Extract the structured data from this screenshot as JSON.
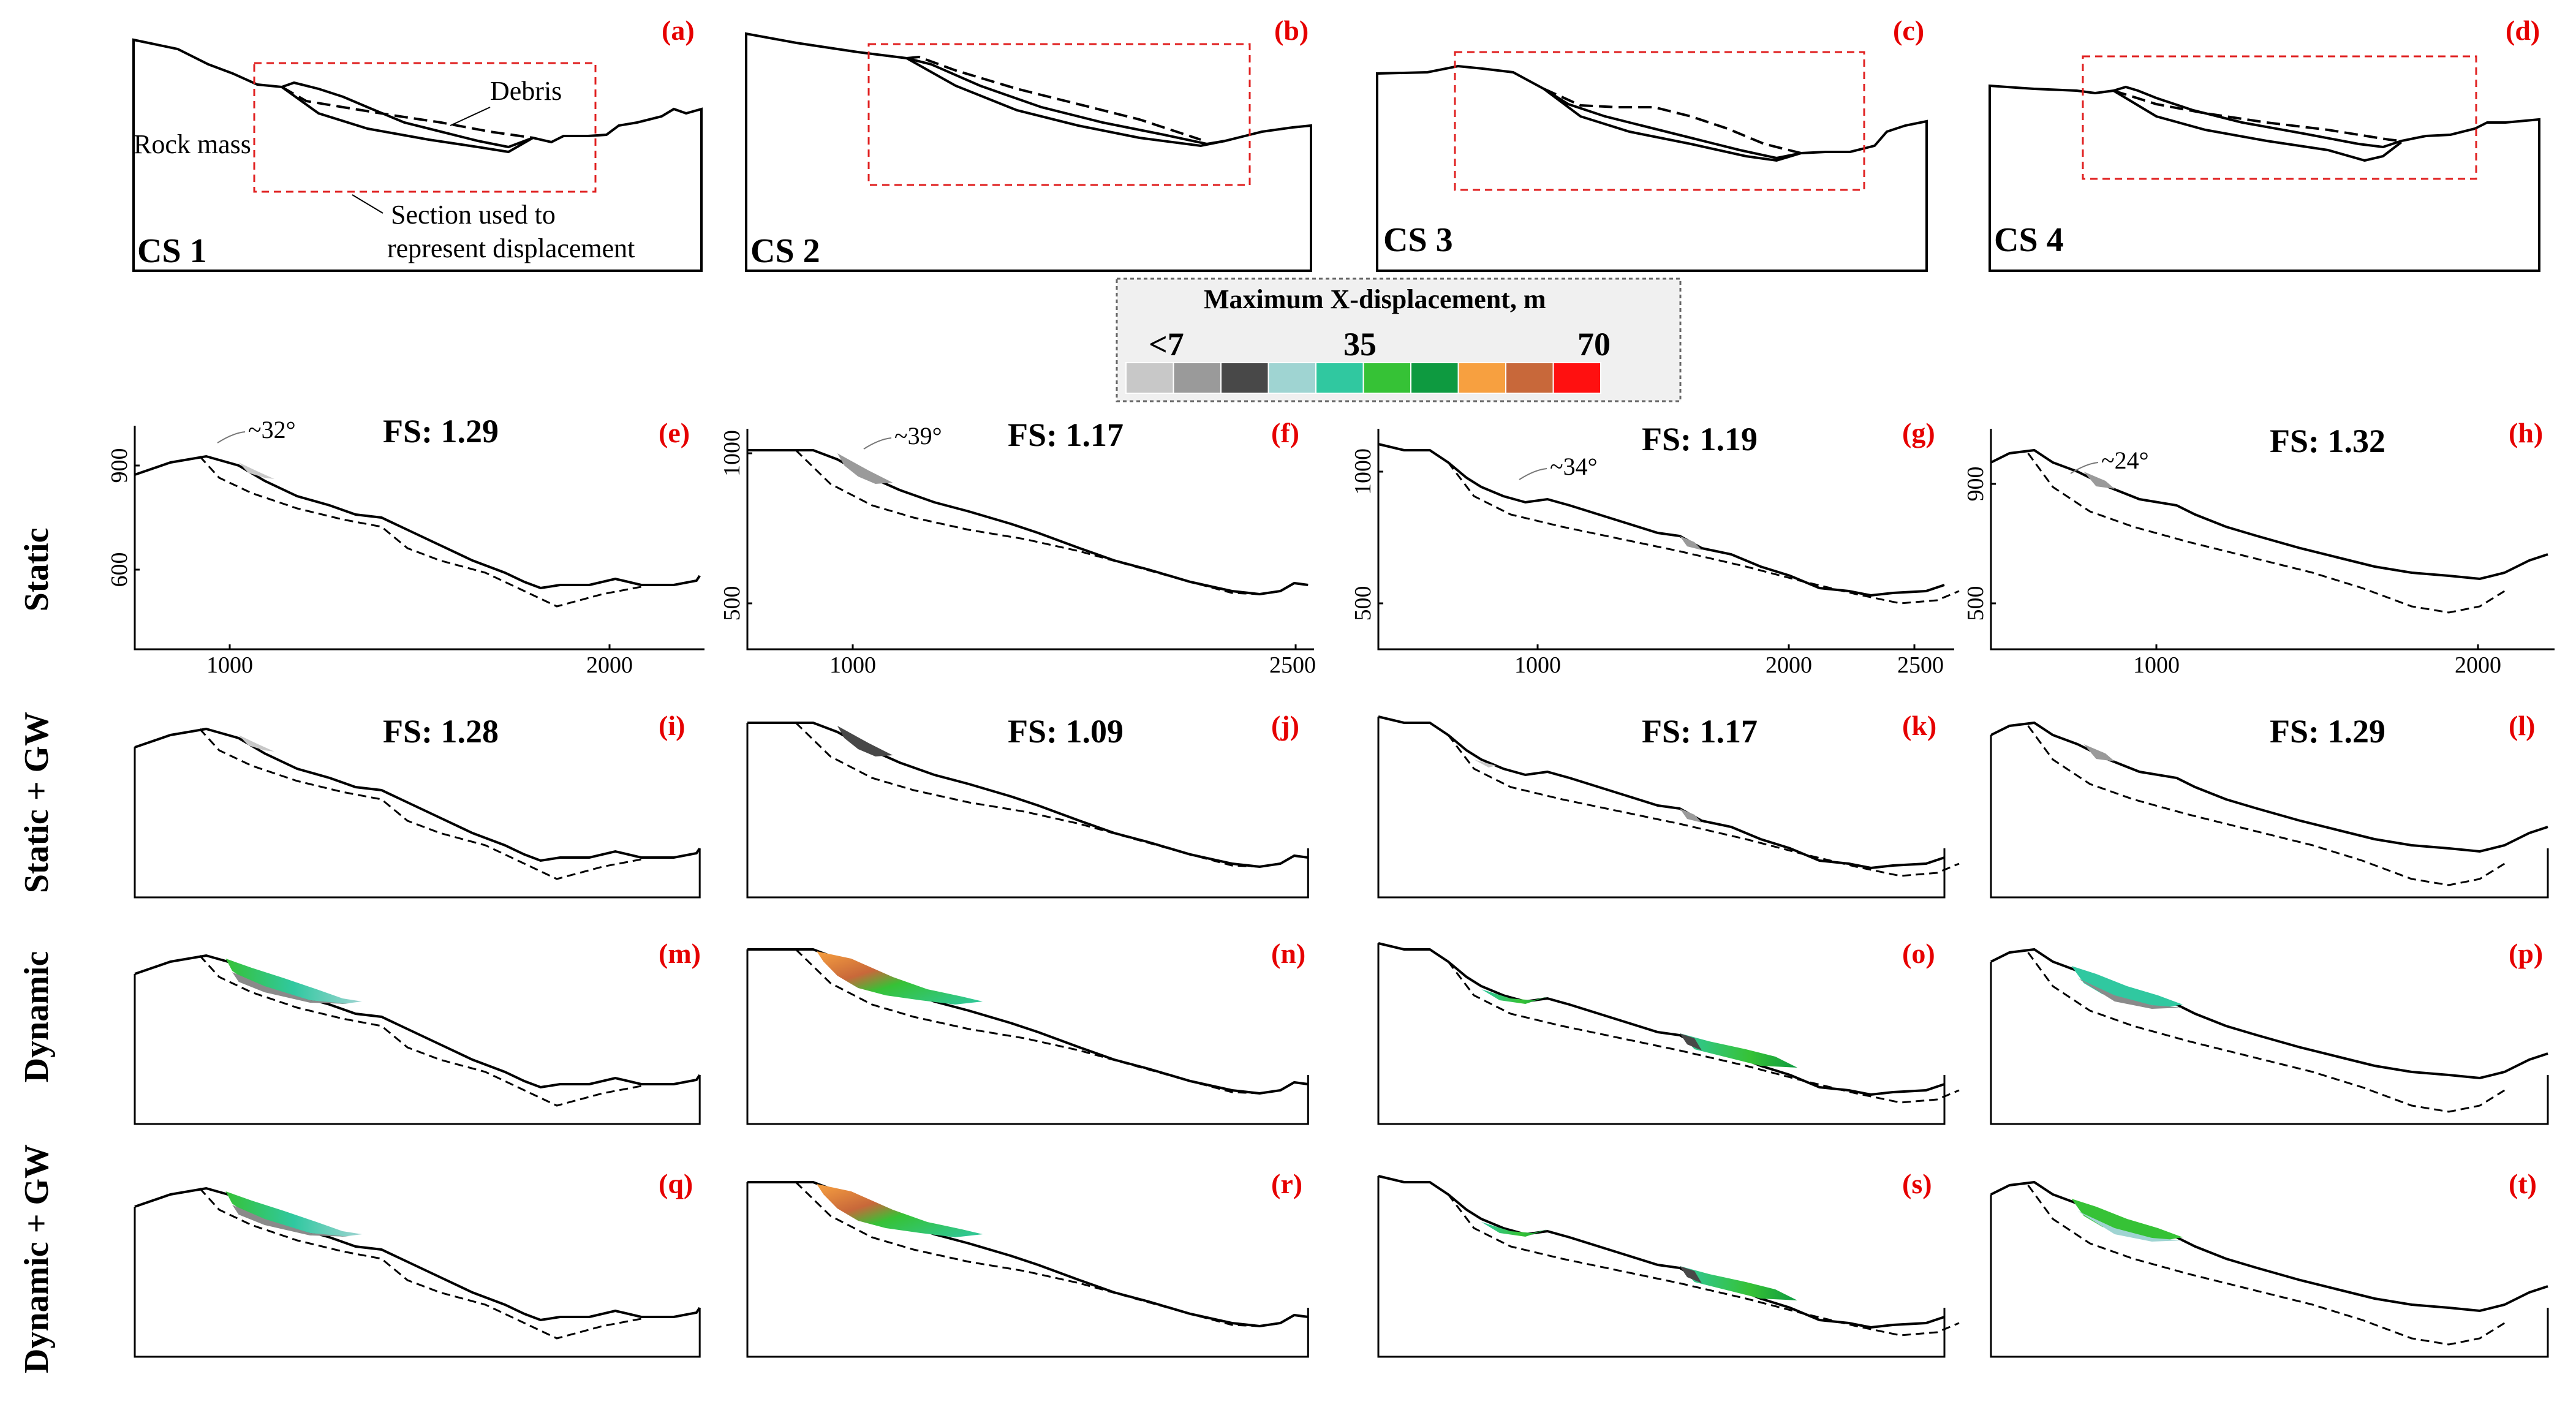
{
  "legend": {
    "title": "Maximum X-displacement, m",
    "labels": [
      "<7",
      "35",
      "70"
    ],
    "colors": [
      "#c8c8c8",
      "#9a9a9a",
      "#484848",
      "#9fd4d2",
      "#30c8a0",
      "#36c236",
      "#0e9a40",
      "#f7a040",
      "#c8683a",
      "#ff1010"
    ]
  },
  "cross_sections": [
    {
      "panel": "(a)",
      "name": "CS 1"
    },
    {
      "panel": "(b)",
      "name": "CS 2"
    },
    {
      "panel": "(c)",
      "name": "CS 3"
    },
    {
      "panel": "(d)",
      "name": "CS 4"
    }
  ],
  "annotations": {
    "debris": "Debris",
    "rock_mass": "Rock mass",
    "section_line1": "Section used to",
    "section_line2": "represent displacement"
  },
  "row_labels": [
    "Static",
    "Static + GW",
    "Dynamic",
    "Dynamic + GW"
  ],
  "panels": [
    {
      "label": "(e)",
      "fs": "FS: 1.29",
      "angle": "~32°"
    },
    {
      "label": "(f)",
      "fs": "FS: 1.17",
      "angle": "~39°"
    },
    {
      "label": "(g)",
      "fs": "FS: 1.19",
      "angle": "~34°"
    },
    {
      "label": "(h)",
      "fs": "FS: 1.32",
      "angle": "~24°"
    },
    {
      "label": "(i)",
      "fs": "FS: 1.28"
    },
    {
      "label": "(j)",
      "fs": "FS: 1.09"
    },
    {
      "label": "(k)",
      "fs": "FS: 1.17"
    },
    {
      "label": "(l)",
      "fs": "FS: 1.29"
    },
    {
      "label": "(m)"
    },
    {
      "label": "(n)"
    },
    {
      "label": "(o)"
    },
    {
      "label": "(p)"
    },
    {
      "label": "(q)"
    },
    {
      "label": "(r)"
    },
    {
      "label": "(s)"
    },
    {
      "label": "(t)"
    }
  ],
  "axes": [
    {
      "x_ticks": [
        "1000",
        "2000"
      ],
      "y_ticks": [
        "900",
        "600"
      ]
    },
    {
      "x_ticks": [
        "1000",
        "2500"
      ],
      "y_ticks": [
        "1000",
        "500"
      ]
    },
    {
      "x_ticks": [
        "1000",
        "2000",
        "2500"
      ],
      "y_ticks": [
        "1000",
        "500"
      ]
    },
    {
      "x_ticks": [
        "1000",
        "2000"
      ],
      "y_ticks": [
        "900",
        "500"
      ]
    }
  ]
}
